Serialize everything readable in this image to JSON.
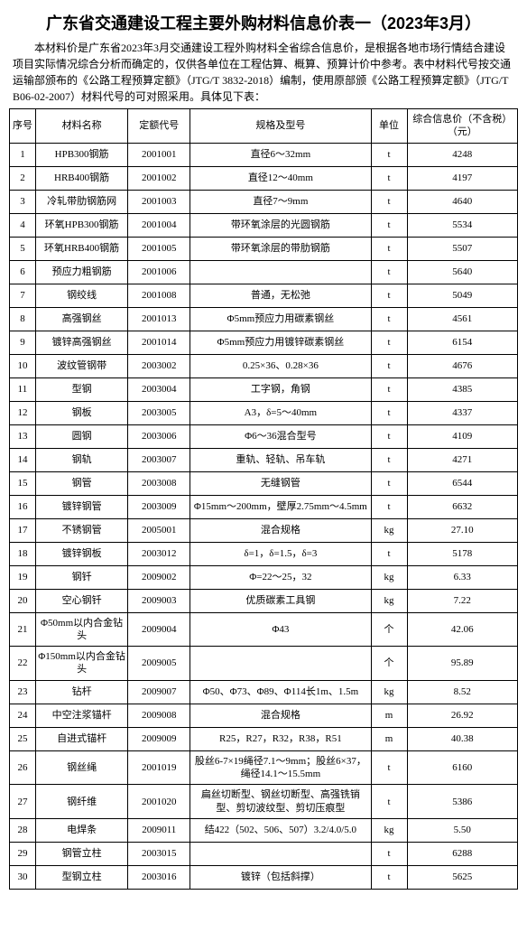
{
  "title": "广东省交通建设工程主要外购材料信息价表一（2023年3月）",
  "intro": "本材料价是广东省2023年3月交通建设工程外购材料全省综合信息价，是根据各地市场行情结合建设项目实际情况综合分析而确定的，仅供各单位在工程估算、概算、预算计价中参考。表中材料代号按交通运输部颁布的《公路工程预算定额》（JTG/T 3832-2018）编制，使用原部颁《公路工程预算定额》（JTG/T B06-02-2007）材料代号的可对照采用。具体见下表：",
  "columns": [
    "序号",
    "材料名称",
    "定额代号",
    "规格及型号",
    "单位",
    "综合信息价（不含税）（元）"
  ],
  "rows": [
    [
      "1",
      "HPB300钢筋",
      "2001001",
      "直径6～32mm",
      "t",
      "4248"
    ],
    [
      "2",
      "HRB400钢筋",
      "2001002",
      "直径12～40mm",
      "t",
      "4197"
    ],
    [
      "3",
      "冷轧带肋钢筋网",
      "2001003",
      "直径7～9mm",
      "t",
      "4640"
    ],
    [
      "4",
      "环氧HPB300钢筋",
      "2001004",
      "带环氧涂层的光圆钢筋",
      "t",
      "5534"
    ],
    [
      "5",
      "环氧HRB400钢筋",
      "2001005",
      "带环氧涂层的带肋钢筋",
      "t",
      "5507"
    ],
    [
      "6",
      "预应力粗钢筋",
      "2001006",
      "",
      "t",
      "5640"
    ],
    [
      "7",
      "钢绞线",
      "2001008",
      "普通，无松弛",
      "t",
      "5049"
    ],
    [
      "8",
      "高强钢丝",
      "2001013",
      "Φ5mm预应力用碳素钢丝",
      "t",
      "4561"
    ],
    [
      "9",
      "镀锌高强钢丝",
      "2001014",
      "Φ5mm预应力用镀锌碳素钢丝",
      "t",
      "6154"
    ],
    [
      "10",
      "波纹管钢带",
      "2003002",
      "0.25×36、0.28×36",
      "t",
      "4676"
    ],
    [
      "11",
      "型钢",
      "2003004",
      "工字钢，角钢",
      "t",
      "4385"
    ],
    [
      "12",
      "钢板",
      "2003005",
      "A3，δ=5～40mm",
      "t",
      "4337"
    ],
    [
      "13",
      "圆钢",
      "2003006",
      "Φ6～36混合型号",
      "t",
      "4109"
    ],
    [
      "14",
      "钢轨",
      "2003007",
      "重轨、轻轨、吊车轨",
      "t",
      "4271"
    ],
    [
      "15",
      "钢管",
      "2003008",
      "无缝钢管",
      "t",
      "6544"
    ],
    [
      "16",
      "镀锌钢管",
      "2003009",
      "Φ15mm～200mm，壁厚2.75mm～4.5mm",
      "t",
      "6632"
    ],
    [
      "17",
      "不锈钢管",
      "2005001",
      "混合规格",
      "kg",
      "27.10"
    ],
    [
      "18",
      "镀锌钢板",
      "2003012",
      "δ=1，δ=1.5，δ=3",
      "t",
      "5178"
    ],
    [
      "19",
      "钢钎",
      "2009002",
      "Φ=22～25，32",
      "kg",
      "6.33"
    ],
    [
      "20",
      "空心钢钎",
      "2009003",
      "优质碳素工具钢",
      "kg",
      "7.22"
    ],
    [
      "21",
      "Φ50mm以内合金钻头",
      "2009004",
      "Φ43",
      "个",
      "42.06"
    ],
    [
      "22",
      "Φ150mm以内合金钻头",
      "2009005",
      "",
      "个",
      "95.89"
    ],
    [
      "23",
      "钻杆",
      "2009007",
      "Φ50、Φ73、Φ89、Φ114长1m、1.5m",
      "kg",
      "8.52"
    ],
    [
      "24",
      "中空注浆锚杆",
      "2009008",
      "混合规格",
      "m",
      "26.92"
    ],
    [
      "25",
      "自进式锚杆",
      "2009009",
      "R25，R27，R32，R38，R51",
      "m",
      "40.38"
    ],
    [
      "26",
      "钢丝绳",
      "2001019",
      "股丝6-7×19绳径7.1～9mm；股丝6×37，绳径14.1～15.5mm",
      "t",
      "6160"
    ],
    [
      "27",
      "钢纤维",
      "2001020",
      "扁丝切断型、钢丝切断型、高强铣销型、剪切波纹型、剪切压痕型",
      "t",
      "5386"
    ],
    [
      "28",
      "电焊条",
      "2009011",
      "结422（502、506、507）3.2/4.0/5.0",
      "kg",
      "5.50"
    ],
    [
      "29",
      "钢管立柱",
      "2003015",
      "",
      "t",
      "6288"
    ],
    [
      "30",
      "型钢立柱",
      "2003016",
      "镀锌（包括斜撑）",
      "t",
      "5625"
    ]
  ]
}
